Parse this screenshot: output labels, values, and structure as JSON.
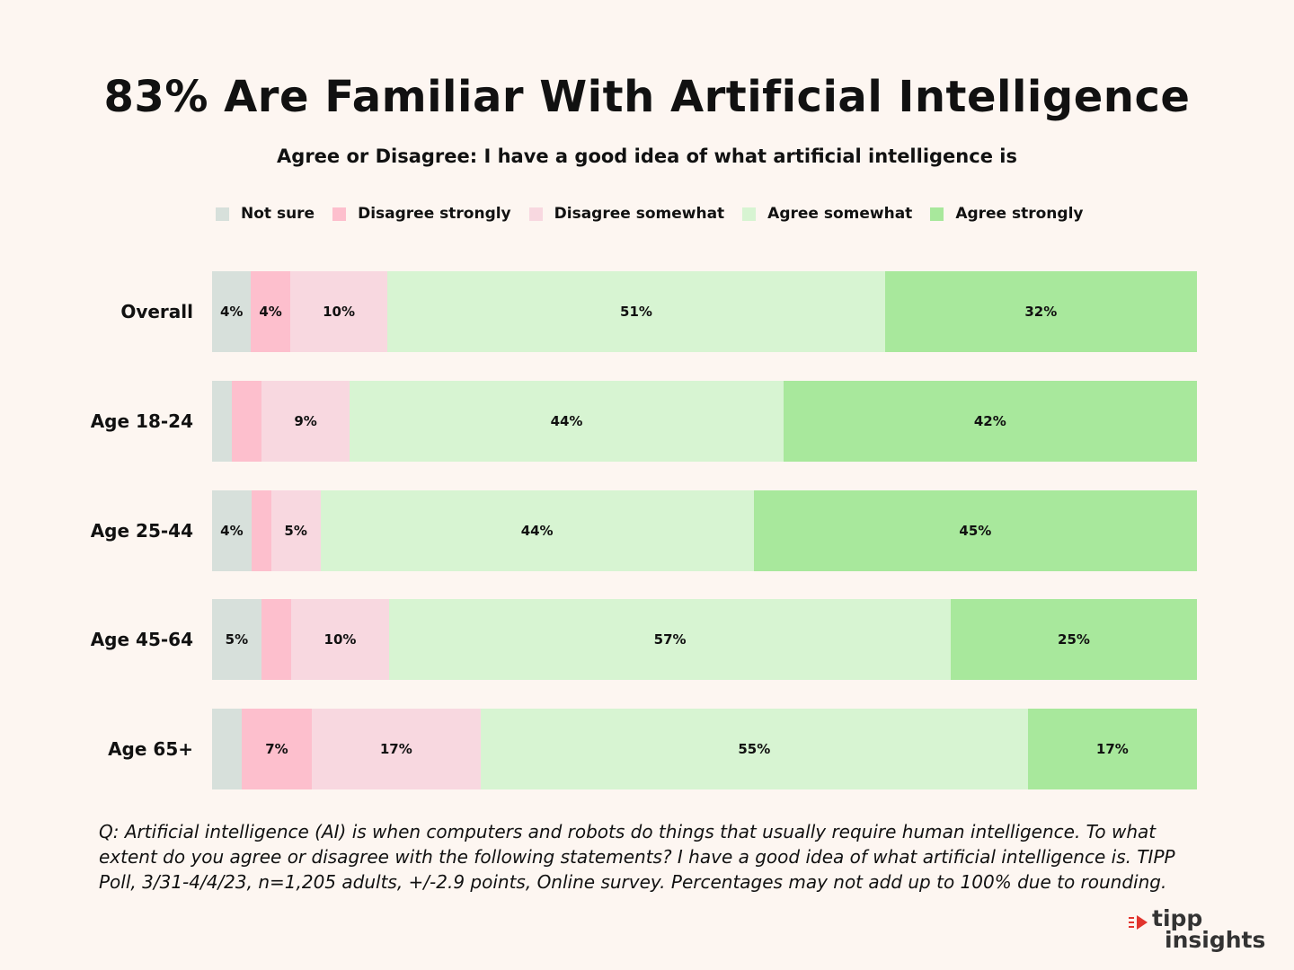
{
  "chart_data": {
    "type": "bar",
    "orientation": "horizontal",
    "stacked": true,
    "title": "83% Are Familiar With Artificial Intelligence",
    "subtitle": "Agree or Disagree: I have a good idea of what artificial intelligence is",
    "categories": [
      "Overall",
      "Age 18-24",
      "Age 25-44",
      "Age 45-64",
      "Age 65+"
    ],
    "series": [
      {
        "name": "Not sure",
        "color": "#d7e0db",
        "values": [
          4,
          2,
          4,
          5,
          3
        ],
        "labels": [
          "4%",
          "",
          "4%",
          "5%",
          ""
        ]
      },
      {
        "name": "Disagree strongly",
        "color": "#fdbfcd",
        "values": [
          4,
          3,
          2,
          3,
          7
        ],
        "labels": [
          "4%",
          "",
          "",
          "",
          "7%"
        ]
      },
      {
        "name": "Disagree somewhat",
        "color": "#f8d8e0",
        "values": [
          10,
          9,
          5,
          10,
          17
        ],
        "labels": [
          "10%",
          "9%",
          "5%",
          "10%",
          "17%"
        ]
      },
      {
        "name": "Agree somewhat",
        "color": "#d7f4d2",
        "values": [
          51,
          44,
          44,
          57,
          55
        ],
        "labels": [
          "51%",
          "44%",
          "44%",
          "57%",
          "55%"
        ]
      },
      {
        "name": "Agree strongly",
        "color": "#a8e89c",
        "values": [
          32,
          42,
          45,
          25,
          17
        ],
        "labels": [
          "32%",
          "42%",
          "45%",
          "25%",
          "17%"
        ]
      }
    ],
    "legend_position": "top",
    "xlabel": "",
    "ylabel": ""
  },
  "footnote": "Q: Artificial intelligence (AI) is when computers and robots do things that usually require human intelligence. To what extent do you agree or disagree with the following statements? I have a good idea of what artificial intelligence is. TIPP Poll, 3/31-4/4/23, n=1,205 adults, +/-2.9 points, Online survey. Percentages may not add up to 100% due to rounding.",
  "logo": {
    "line1": "tipp",
    "line2": "insights",
    "accent_color": "#e2342d"
  }
}
